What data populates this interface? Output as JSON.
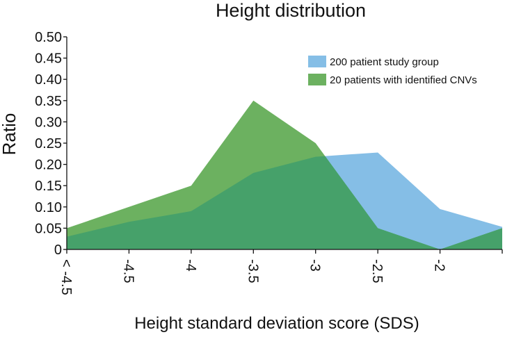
{
  "chart_data": {
    "type": "area",
    "title": "Height distribution",
    "xlabel": "Height standard deviation score (SDS)",
    "ylabel": "Ratio",
    "categories": [
      "< -4.5",
      "-4.5",
      "-4",
      "-3.5",
      "-3",
      "-2.5",
      "-2",
      ""
    ],
    "ylim": [
      0,
      0.5
    ],
    "yticks": [
      "0",
      "0.05",
      "0.10",
      "0.15",
      "0.20",
      "0.25",
      "0.30",
      "0.35",
      "0.40",
      "0.45",
      "0.50"
    ],
    "grid": false,
    "legend_position": "top-right",
    "series": [
      {
        "name": "200 patient study group",
        "color": "#85bee6",
        "values": [
          0.03,
          0.065,
          0.09,
          0.18,
          0.218,
          0.228,
          0.095,
          0.053
        ]
      },
      {
        "name": "20 patients with identified CNVs",
        "color": "#6cb160",
        "values": [
          0.05,
          0.1,
          0.15,
          0.35,
          0.25,
          0.05,
          0.0,
          0.05
        ]
      }
    ],
    "overlap_color": "#46a16a"
  }
}
